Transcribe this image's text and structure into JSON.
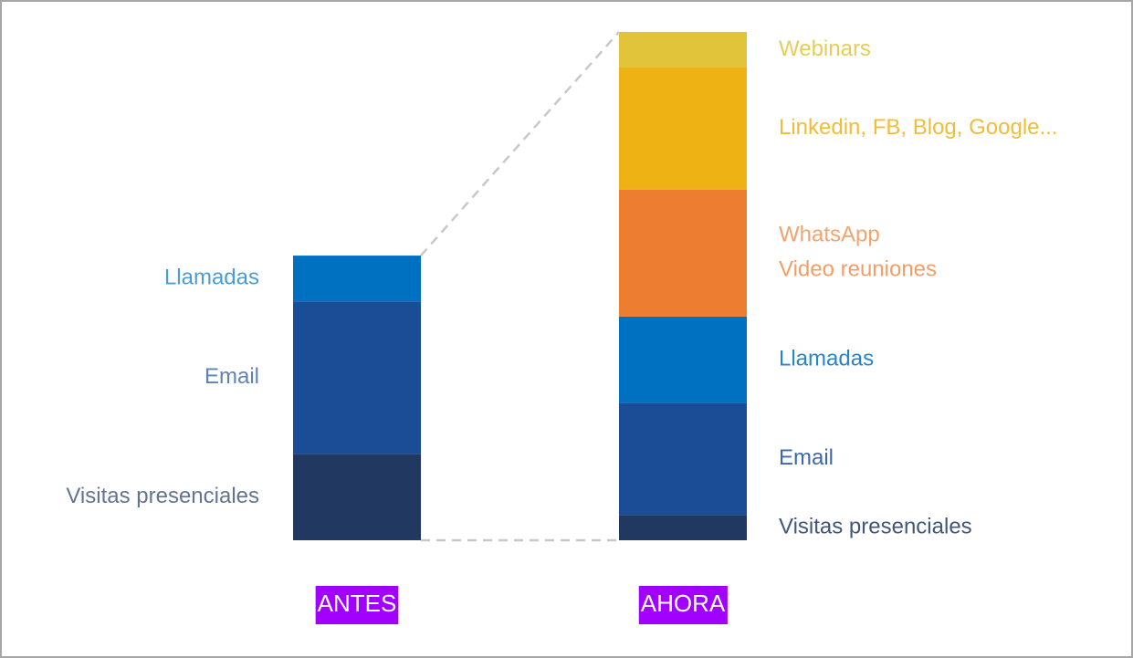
{
  "chart_data": {
    "type": "stacked-bar",
    "categories": [
      "ANTES",
      "AHORA"
    ],
    "category_color": "#a100ff",
    "ylim": [
      0,
      100
    ],
    "series": [
      {
        "name": "Visitas presenciales",
        "color": "#213861",
        "values": [
          17,
          5
        ]
      },
      {
        "name": "Email",
        "color": "#1b4c96",
        "values": [
          30,
          22
        ]
      },
      {
        "name": "Llamadas",
        "color": "#0070c0",
        "values": [
          9,
          17
        ]
      },
      {
        "name": "WhatsApp",
        "subname": "Video reuniones",
        "color": "#ed7d31",
        "values": [
          null,
          25
        ]
      },
      {
        "name": "Linkedin, FB, Blog, Google...",
        "color": "#efb214",
        "values": [
          null,
          24
        ]
      },
      {
        "name": "Webinars",
        "color": "#e2c43a",
        "values": [
          null,
          7
        ]
      }
    ]
  }
}
